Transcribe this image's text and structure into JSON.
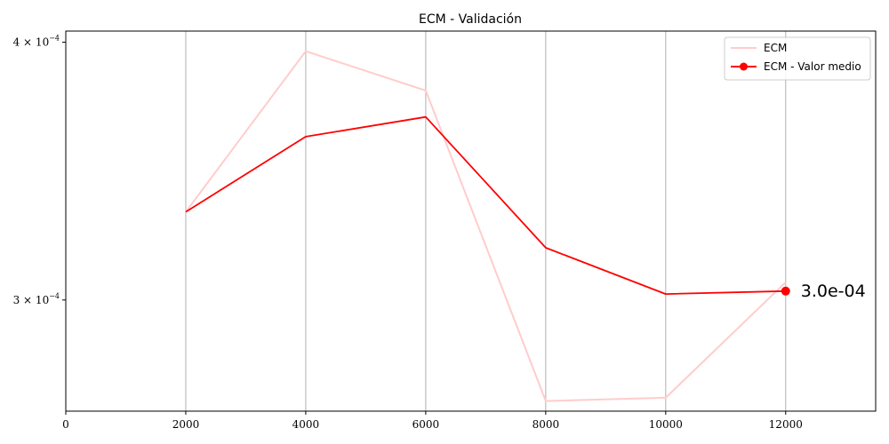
{
  "chart_data": {
    "type": "line",
    "title": "ECM - Validación",
    "xlabel": "",
    "ylabel": "",
    "xlim": [
      0,
      13500
    ],
    "ylim": [
      0.000265,
      0.000405
    ],
    "y_scale": "log",
    "grid": "vertical",
    "x_ticks": [
      0,
      2000,
      4000,
      6000,
      8000,
      10000,
      12000
    ],
    "y_ticks": [
      {
        "value": 0.0003,
        "mantissa": "3",
        "base": "10",
        "exponent": "−4"
      },
      {
        "value": 0.0004,
        "mantissa": "4",
        "base": "10",
        "exponent": "−4"
      }
    ],
    "series": [
      {
        "name": "ECM",
        "color": "#ffcccc",
        "marker": "none",
        "x": [
          2000,
          4000,
          6000,
          8000,
          10000,
          12000
        ],
        "y": [
          0.000331,
          0.000396,
          0.000379,
          0.000268,
          0.000269,
          0.000306
        ]
      },
      {
        "name": "ECM - Valor medio",
        "color": "#ff0000",
        "marker": "last-point",
        "x": [
          2000,
          4000,
          6000,
          8000,
          10000,
          12000
        ],
        "y": [
          0.000331,
          0.00036,
          0.000368,
          0.000318,
          0.000302,
          0.000303
        ]
      }
    ],
    "legend_position": "top-right",
    "annotation": "3.0e-04"
  }
}
